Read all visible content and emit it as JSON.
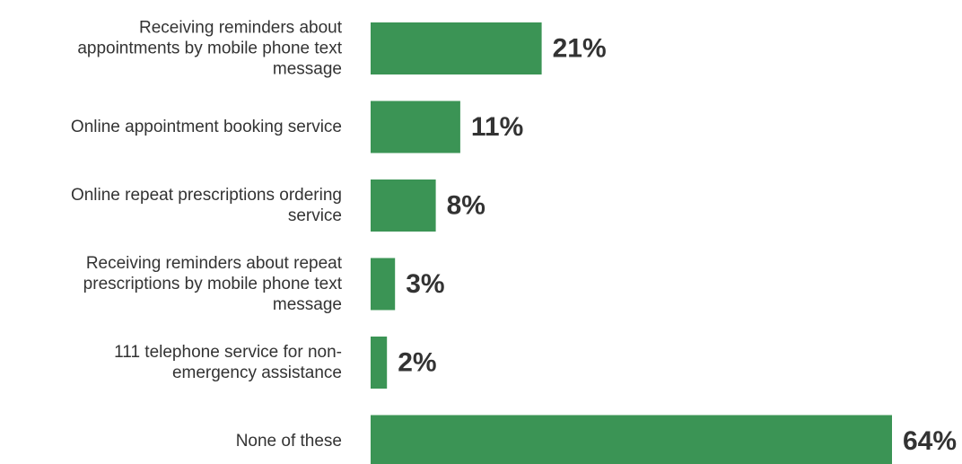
{
  "chart_data": {
    "type": "bar",
    "orientation": "horizontal",
    "categories": [
      [
        "Receiving reminders about",
        "appointments by mobile phone text",
        "message"
      ],
      [
        "Online appointment booking service"
      ],
      [
        "Online repeat prescriptions ordering",
        "service"
      ],
      [
        "Receiving reminders about repeat",
        "prescriptions by mobile phone text",
        "message"
      ],
      [
        "111 telephone service for non-",
        "emergency assistance"
      ],
      [
        "None of these"
      ]
    ],
    "values": [
      21,
      11,
      8,
      3,
      2,
      64
    ],
    "value_labels": [
      "21%",
      "11%",
      "8%",
      "3%",
      "2%",
      "64%"
    ],
    "xlim": [
      0,
      64
    ],
    "grid": false,
    "bar_color": "#3b9455",
    "label_color": "#333333"
  }
}
